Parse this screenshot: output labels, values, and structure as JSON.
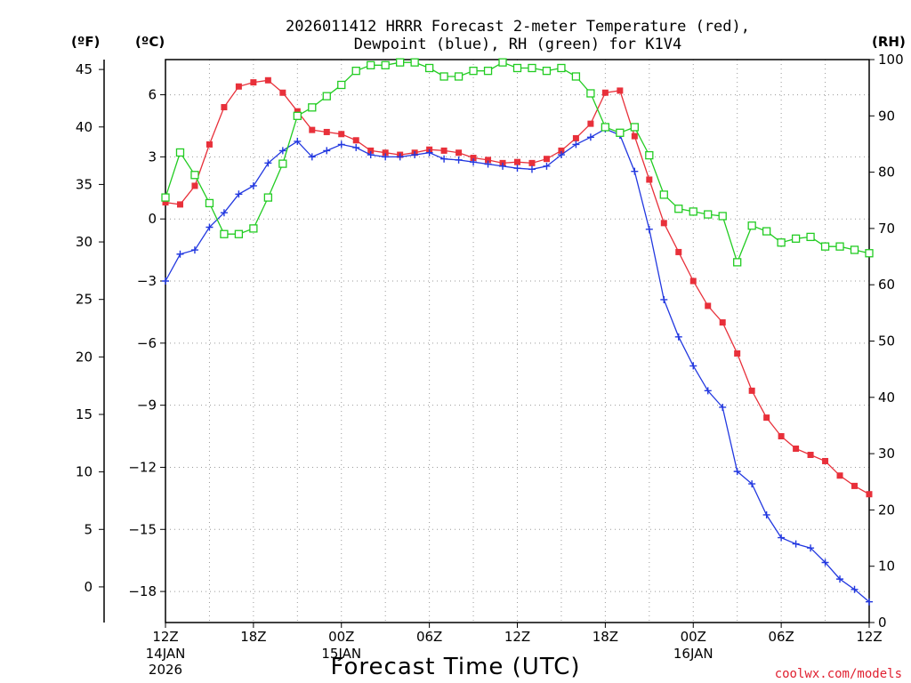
{
  "colors": {
    "temp": "#e8303a",
    "dewp": "#2238e0",
    "rh": "#22cc22",
    "credit": "#e02030"
  },
  "chart_data": {
    "type": "line",
    "title_line1": "2026011412 HRRR Forecast 2-meter Temperature (red),",
    "title_line2": "Dewpoint (blue), RH (green) for K1V4",
    "xlabel": "Forecast Time (UTC)",
    "credit": "coolwx.com/models",
    "unit_f": "(ºF)",
    "unit_c": "(ºC)",
    "unit_rh": "(RH)",
    "x_range": [
      0,
      48
    ],
    "c_range": [
      -19.5,
      7.7
    ],
    "rh_range": [
      0,
      100
    ],
    "x_ticks": [
      {
        "x": 0,
        "label": "12Z",
        "sub1": "14JAN",
        "sub2": "2026"
      },
      {
        "x": 6,
        "label": "18Z",
        "sub1": "",
        "sub2": ""
      },
      {
        "x": 12,
        "label": "00Z",
        "sub1": "15JAN",
        "sub2": ""
      },
      {
        "x": 18,
        "label": "06Z",
        "sub1": "",
        "sub2": ""
      },
      {
        "x": 24,
        "label": "12Z",
        "sub1": "",
        "sub2": ""
      },
      {
        "x": 30,
        "label": "18Z",
        "sub1": "",
        "sub2": ""
      },
      {
        "x": 36,
        "label": "00Z",
        "sub1": "16JAN",
        "sub2": ""
      },
      {
        "x": 42,
        "label": "06Z",
        "sub1": "",
        "sub2": ""
      },
      {
        "x": 48,
        "label": "12Z",
        "sub1": "",
        "sub2": ""
      }
    ],
    "c_ticks": [
      {
        "value": 6,
        "label": "6"
      },
      {
        "value": 3,
        "label": "3"
      },
      {
        "value": 0,
        "label": "0"
      },
      {
        "value": -3,
        "label": "−3"
      },
      {
        "value": -6,
        "label": "−6"
      },
      {
        "value": -9,
        "label": "−9"
      },
      {
        "value": -12,
        "label": "−12"
      },
      {
        "value": -15,
        "label": "−15"
      },
      {
        "value": -18,
        "label": "−18"
      }
    ],
    "f_ticks": [
      {
        "value": 45,
        "label": "45"
      },
      {
        "value": 40,
        "label": "40"
      },
      {
        "value": 35,
        "label": "35"
      },
      {
        "value": 30,
        "label": "30"
      },
      {
        "value": 25,
        "label": "25"
      },
      {
        "value": 20,
        "label": "20"
      },
      {
        "value": 15,
        "label": "15"
      },
      {
        "value": 10,
        "label": "10"
      },
      {
        "value": 5,
        "label": "5"
      },
      {
        "value": 0,
        "label": "0"
      }
    ],
    "rh_ticks": [
      {
        "value": 100,
        "label": "100"
      },
      {
        "value": 90,
        "label": "90"
      },
      {
        "value": 80,
        "label": "80"
      },
      {
        "value": 70,
        "label": "70"
      },
      {
        "value": 60,
        "label": "60"
      },
      {
        "value": 50,
        "label": "50"
      },
      {
        "value": 40,
        "label": "40"
      },
      {
        "value": 30,
        "label": "30"
      },
      {
        "value": 20,
        "label": "20"
      },
      {
        "value": 10,
        "label": "10"
      },
      {
        "value": 0,
        "label": "0"
      }
    ],
    "series": [
      {
        "name": "Temperature",
        "unit": "C",
        "marker": "filled-square",
        "color_key": "temp",
        "values": [
          0.8,
          0.7,
          1.6,
          3.6,
          5.4,
          6.4,
          6.6,
          6.7,
          6.1,
          5.2,
          4.3,
          4.2,
          4.1,
          3.8,
          3.3,
          3.2,
          3.1,
          3.2,
          3.35,
          3.3,
          3.2,
          2.95,
          2.85,
          2.7,
          2.75,
          2.7,
          2.9,
          3.3,
          3.9,
          4.6,
          6.1,
          6.2,
          4.0,
          1.9,
          -0.2,
          -1.6,
          -3.0,
          -4.2,
          -5.0,
          -6.5,
          -8.3,
          -9.6,
          -10.5,
          -11.1,
          -11.4,
          -11.7,
          -12.4,
          -12.9,
          -13.3
        ]
      },
      {
        "name": "Dewpoint",
        "unit": "C",
        "marker": "plus",
        "color_key": "dewp",
        "values": [
          -3.0,
          -1.7,
          -1.5,
          -0.4,
          0.3,
          1.2,
          1.6,
          2.7,
          3.3,
          3.75,
          3.0,
          3.3,
          3.6,
          3.45,
          3.1,
          3.0,
          3.0,
          3.1,
          3.2,
          2.9,
          2.85,
          2.75,
          2.65,
          2.55,
          2.45,
          2.4,
          2.55,
          3.1,
          3.6,
          3.95,
          4.35,
          4.05,
          2.3,
          -0.5,
          -3.9,
          -5.7,
          -7.1,
          -8.3,
          -9.1,
          -12.2,
          -12.8,
          -14.3,
          -15.4,
          -15.7,
          -15.9,
          -16.6,
          -17.4,
          -17.9,
          -18.5
        ]
      },
      {
        "name": "RH",
        "unit": "%",
        "marker": "open-square",
        "color_key": "rh",
        "values": [
          75.5,
          83.5,
          79.5,
          74.5,
          69,
          69,
          70,
          75.5,
          81.5,
          90,
          91.5,
          93.5,
          95.5,
          98,
          99,
          99,
          99.5,
          99.5,
          98.5,
          97,
          97,
          98,
          98,
          99.5,
          98.5,
          98.5,
          98,
          98.5,
          97,
          94,
          88,
          87,
          88,
          83,
          76,
          73.5,
          73,
          72.5,
          72.2,
          64,
          70.5,
          69.5,
          67.5,
          68.2,
          68.5,
          66.8,
          66.8,
          66.2,
          65.6
        ]
      }
    ]
  }
}
